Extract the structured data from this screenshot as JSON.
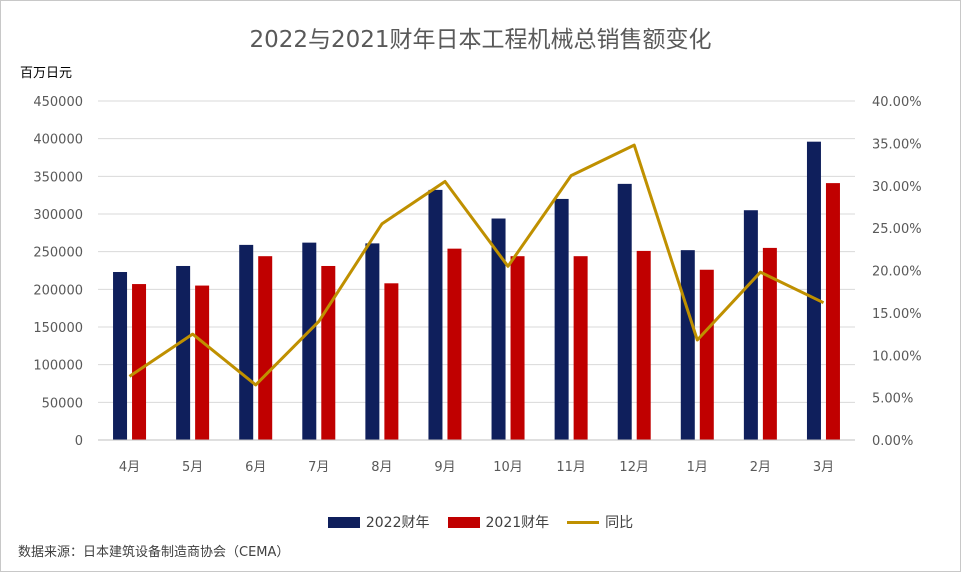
{
  "title": "2022与2021财年日本工程机械总销售额变化",
  "unit_label": "百万日元",
  "source": "数据来源：日本建筑设备制造商协会（CEMA）",
  "colors": {
    "bar_2022": "#0f1f5c",
    "bar_2021": "#c00000",
    "line_yoy": "#bf9000",
    "grid": "#d9d9d9"
  },
  "chart_data": {
    "type": "bar",
    "title": "2022与2021财年日本工程机械总销售额变化",
    "ylabel": "百万日元",
    "categories": [
      "4月",
      "5月",
      "6月",
      "7月",
      "8月",
      "9月",
      "10月",
      "11月",
      "12月",
      "1月",
      "2月",
      "3月"
    ],
    "ylim": [
      0,
      450000
    ],
    "y_ticks": [
      "0",
      "50000",
      "100000",
      "150000",
      "200000",
      "250000",
      "300000",
      "350000",
      "400000",
      "450000"
    ],
    "y2lim": [
      0,
      0.4
    ],
    "y2_ticks": [
      "0.00%",
      "5.00%",
      "10.00%",
      "15.00%",
      "20.00%",
      "25.00%",
      "30.00%",
      "35.00%",
      "40.00%"
    ],
    "grid": true,
    "legend_position": "bottom",
    "series": [
      {
        "name": "2022财年",
        "type": "bar",
        "axis": "left",
        "values": [
          223000,
          231000,
          259000,
          262000,
          261000,
          332000,
          294000,
          320000,
          340000,
          252000,
          305000,
          396000
        ]
      },
      {
        "name": "2021财年",
        "type": "bar",
        "axis": "left",
        "values": [
          207000,
          205000,
          244000,
          231000,
          208000,
          254000,
          244000,
          244000,
          251000,
          226000,
          255000,
          341000
        ]
      },
      {
        "name": "同比",
        "type": "line",
        "axis": "right",
        "values": [
          0.075,
          0.125,
          0.065,
          0.14,
          0.255,
          0.305,
          0.205,
          0.312,
          0.348,
          0.118,
          0.198,
          0.162
        ]
      }
    ]
  }
}
